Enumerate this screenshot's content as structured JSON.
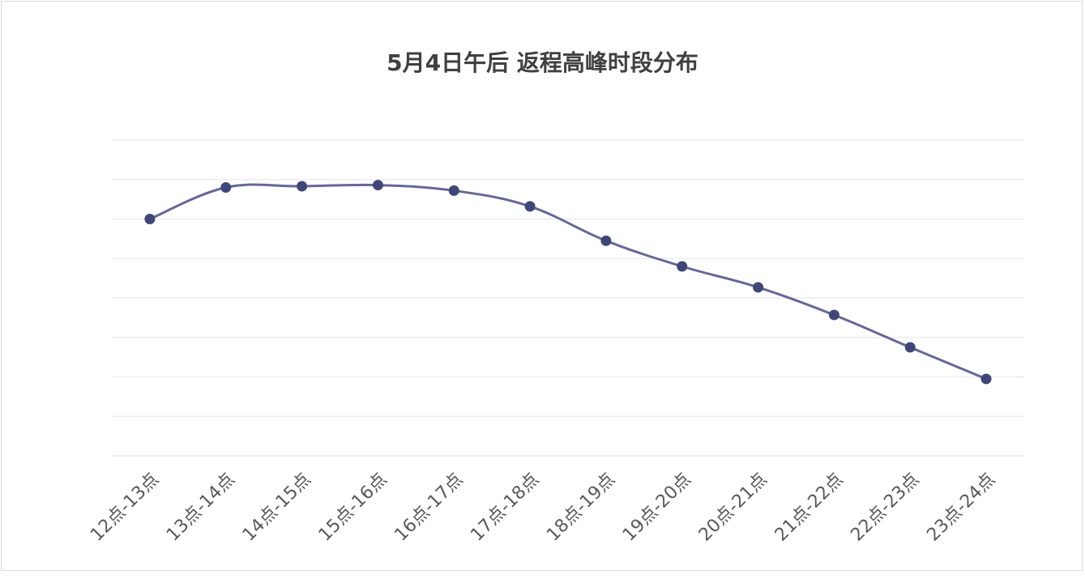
{
  "chart_data": {
    "type": "line",
    "title": "5月4日午后 返程高峰时段分布",
    "categories": [
      "12点-13点",
      "13点-14点",
      "14点-15点",
      "15点-16点",
      "16点-17点",
      "17点-18点",
      "18点-19点",
      "19点-20点",
      "20点-21点",
      "21点-22点",
      "22点-23点",
      "23点-24点"
    ],
    "series": [
      {
        "values": [
          6.0,
          6.8,
          6.83,
          6.86,
          6.72,
          6.32,
          5.45,
          4.8,
          4.27,
          3.57,
          2.75,
          1.95
        ]
      }
    ],
    "ylim": [
      0,
      8
    ],
    "grid": true,
    "line_color": "#646896",
    "marker_color": "#3f4678",
    "grid_color": "#ececec"
  }
}
